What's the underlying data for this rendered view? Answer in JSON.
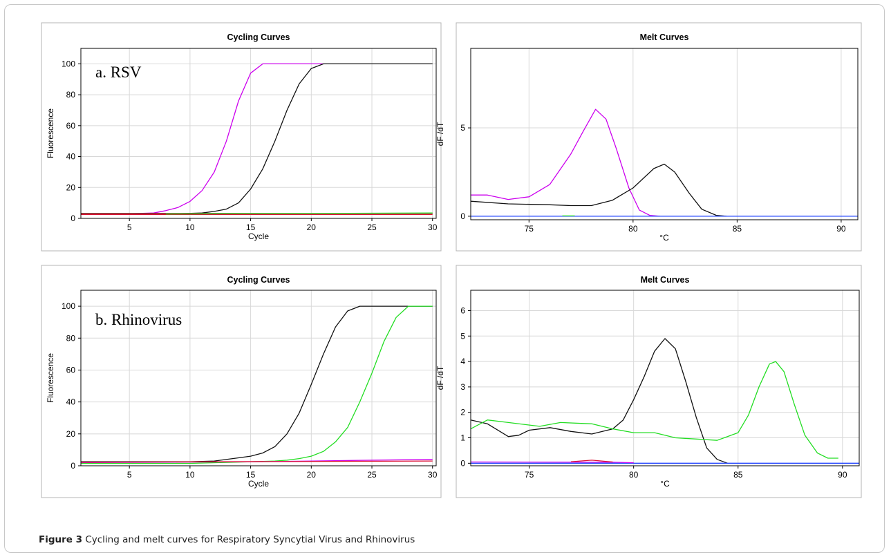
{
  "figure": {
    "caption_label": "Figure 3",
    "caption_text": "Cycling and melt curves for Respiratory Syncytial Virus and Rhinovirus"
  },
  "colors": {
    "magenta": "#cc00ee",
    "black": "#111111",
    "green": "#22dd22",
    "red": "#dd1133",
    "blue": "#2244ff",
    "dark_red": "#993333"
  },
  "chart_data": [
    {
      "type": "line",
      "title": "Cycling Curves",
      "annotation": "a. RSV",
      "xlabel": "Cycle",
      "ylabel": "Fluorescence",
      "xlim": [
        1,
        30.3
      ],
      "ylim": [
        0,
        110
      ],
      "xticks": [
        5,
        10,
        15,
        20,
        25,
        30
      ],
      "yticks": [
        0,
        20,
        40,
        60,
        80,
        100
      ],
      "grid": true,
      "series": [
        {
          "color": "magenta",
          "points": [
            [
              1,
              3
            ],
            [
              5,
              3
            ],
            [
              7,
              3.5
            ],
            [
              8,
              5
            ],
            [
              9,
              7
            ],
            [
              10,
              11
            ],
            [
              11,
              18
            ],
            [
              12,
              30
            ],
            [
              13,
              50
            ],
            [
              14,
              76
            ],
            [
              15,
              94
            ],
            [
              16,
              100
            ],
            [
              20,
              100
            ],
            [
              21,
              100
            ]
          ]
        },
        {
          "color": "black",
          "points": [
            [
              1,
              3
            ],
            [
              5,
              3
            ],
            [
              9,
              3
            ],
            [
              11,
              3.5
            ],
            [
              12,
              4.5
            ],
            [
              13,
              6
            ],
            [
              14,
              10
            ],
            [
              15,
              19
            ],
            [
              16,
              32
            ],
            [
              17,
              50
            ],
            [
              18,
              70
            ],
            [
              19,
              87
            ],
            [
              20,
              97
            ],
            [
              21,
              100
            ],
            [
              30,
              100
            ]
          ]
        },
        {
          "color": "red",
          "points": [
            [
              1,
              2.5
            ],
            [
              30,
              2.5
            ]
          ]
        },
        {
          "color": "dark_red",
          "points": [
            [
              1,
              3.2
            ],
            [
              30,
              3.2
            ]
          ]
        },
        {
          "color": "green",
          "points": [
            [
              8,
              2.8
            ],
            [
              30,
              3.5
            ]
          ]
        }
      ]
    },
    {
      "type": "line",
      "title": "Melt Curves",
      "xlabel": "°C",
      "ylabel": "dF /dT",
      "xlim": [
        72.2,
        90.8
      ],
      "ylim": [
        -0.2,
        9.5
      ],
      "xticks": [
        75,
        80,
        85,
        90
      ],
      "yticks": [
        0,
        5
      ],
      "grid": true,
      "series": [
        {
          "color": "magenta",
          "points": [
            [
              72.2,
              1.2
            ],
            [
              73,
              1.2
            ],
            [
              74,
              0.95
            ],
            [
              75,
              1.1
            ],
            [
              76,
              1.8
            ],
            [
              77,
              3.5
            ],
            [
              77.6,
              4.8
            ],
            [
              78.2,
              6.05
            ],
            [
              78.7,
              5.5
            ],
            [
              79.2,
              3.8
            ],
            [
              79.8,
              1.6
            ],
            [
              80.3,
              0.35
            ],
            [
              80.8,
              0.05
            ],
            [
              81.3,
              0
            ]
          ]
        },
        {
          "color": "black",
          "points": [
            [
              72.2,
              0.85
            ],
            [
              74,
              0.7
            ],
            [
              76,
              0.65
            ],
            [
              77,
              0.6
            ],
            [
              78,
              0.6
            ],
            [
              79,
              0.9
            ],
            [
              80,
              1.6
            ],
            [
              81,
              2.7
            ],
            [
              81.5,
              2.95
            ],
            [
              82,
              2.5
            ],
            [
              82.7,
              1.3
            ],
            [
              83.3,
              0.4
            ],
            [
              84,
              0.05
            ],
            [
              84.5,
              0
            ]
          ]
        },
        {
          "color": "blue",
          "points": [
            [
              72.2,
              0
            ],
            [
              90.8,
              0
            ]
          ]
        },
        {
          "color": "green",
          "points": [
            [
              76.6,
              0.02
            ],
            [
              77.2,
              0.02
            ]
          ]
        }
      ]
    },
    {
      "type": "line",
      "title": "Cycling Curves",
      "annotation": "b. Rhinovirus",
      "xlabel": "Cycle",
      "ylabel": "Fluorescence",
      "xlim": [
        1,
        30.3
      ],
      "ylim": [
        0,
        110
      ],
      "xticks": [
        5,
        10,
        15,
        20,
        25,
        30
      ],
      "yticks": [
        0,
        20,
        40,
        60,
        80,
        100
      ],
      "grid": true,
      "series": [
        {
          "color": "black",
          "points": [
            [
              1,
              2.5
            ],
            [
              5,
              2.5
            ],
            [
              10,
              2.5
            ],
            [
              12,
              3
            ],
            [
              14,
              5
            ],
            [
              15,
              6
            ],
            [
              16,
              8
            ],
            [
              17,
              12
            ],
            [
              18,
              20
            ],
            [
              19,
              33
            ],
            [
              20,
              51
            ],
            [
              21,
              70
            ],
            [
              22,
              87
            ],
            [
              23,
              97
            ],
            [
              24,
              100
            ],
            [
              30,
              100
            ]
          ]
        },
        {
          "color": "green",
          "points": [
            [
              1,
              1.5
            ],
            [
              10,
              1.5
            ],
            [
              15,
              2.5
            ],
            [
              17,
              3
            ],
            [
              18,
              3.5
            ],
            [
              19,
              4.5
            ],
            [
              20,
              6
            ],
            [
              21,
              9
            ],
            [
              22,
              15
            ],
            [
              23,
              24
            ],
            [
              24,
              40
            ],
            [
              25,
              58
            ],
            [
              26,
              78
            ],
            [
              27,
              93
            ],
            [
              28,
              100
            ],
            [
              30,
              100
            ]
          ]
        },
        {
          "color": "magenta",
          "points": [
            [
              1,
              2
            ],
            [
              15,
              2.5
            ],
            [
              20,
              3
            ],
            [
              25,
              3.5
            ],
            [
              30,
              4
            ]
          ]
        },
        {
          "color": "red",
          "points": [
            [
              1,
              2.2
            ],
            [
              30,
              3
            ]
          ]
        }
      ]
    },
    {
      "type": "line",
      "title": "Melt Curves",
      "xlabel": "°C",
      "ylabel": "dF /dT",
      "xlim": [
        72.2,
        90.8
      ],
      "ylim": [
        -0.1,
        6.8
      ],
      "xticks": [
        75,
        80,
        85,
        90
      ],
      "yticks": [
        0,
        1,
        2,
        3,
        4,
        5,
        6
      ],
      "grid": true,
      "series": [
        {
          "color": "black",
          "points": [
            [
              72.2,
              1.7
            ],
            [
              73,
              1.55
            ],
            [
              74,
              1.05
            ],
            [
              74.5,
              1.1
            ],
            [
              75,
              1.3
            ],
            [
              76,
              1.4
            ],
            [
              77,
              1.25
            ],
            [
              78,
              1.15
            ],
            [
              79,
              1.35
            ],
            [
              79.5,
              1.7
            ],
            [
              80,
              2.5
            ],
            [
              80.5,
              3.4
            ],
            [
              81,
              4.4
            ],
            [
              81.5,
              4.9
            ],
            [
              82,
              4.5
            ],
            [
              82.5,
              3.2
            ],
            [
              83,
              1.8
            ],
            [
              83.5,
              0.6
            ],
            [
              84,
              0.15
            ],
            [
              84.5,
              0
            ]
          ]
        },
        {
          "color": "green",
          "points": [
            [
              72.2,
              1.35
            ],
            [
              73,
              1.7
            ],
            [
              74,
              1.6
            ],
            [
              75.5,
              1.45
            ],
            [
              76.5,
              1.6
            ],
            [
              78,
              1.55
            ],
            [
              79,
              1.35
            ],
            [
              80,
              1.2
            ],
            [
              81,
              1.2
            ],
            [
              82,
              1.0
            ],
            [
              83,
              0.95
            ],
            [
              84,
              0.9
            ],
            [
              85,
              1.2
            ],
            [
              85.5,
              1.9
            ],
            [
              86,
              3.0
            ],
            [
              86.5,
              3.9
            ],
            [
              86.8,
              4.0
            ],
            [
              87.2,
              3.6
            ],
            [
              87.7,
              2.3
            ],
            [
              88.2,
              1.1
            ],
            [
              88.8,
              0.4
            ],
            [
              89.3,
              0.2
            ],
            [
              89.8,
              0.2
            ]
          ]
        },
        {
          "color": "blue",
          "points": [
            [
              72.2,
              0
            ],
            [
              90.8,
              0
            ]
          ]
        },
        {
          "color": "magenta",
          "points": [
            [
              72.2,
              0.05
            ],
            [
              79,
              0.04
            ],
            [
              80,
              0.02
            ]
          ]
        },
        {
          "color": "red",
          "points": [
            [
              77,
              0.06
            ],
            [
              78,
              0.12
            ],
            [
              79,
              0.05
            ]
          ]
        }
      ]
    }
  ]
}
